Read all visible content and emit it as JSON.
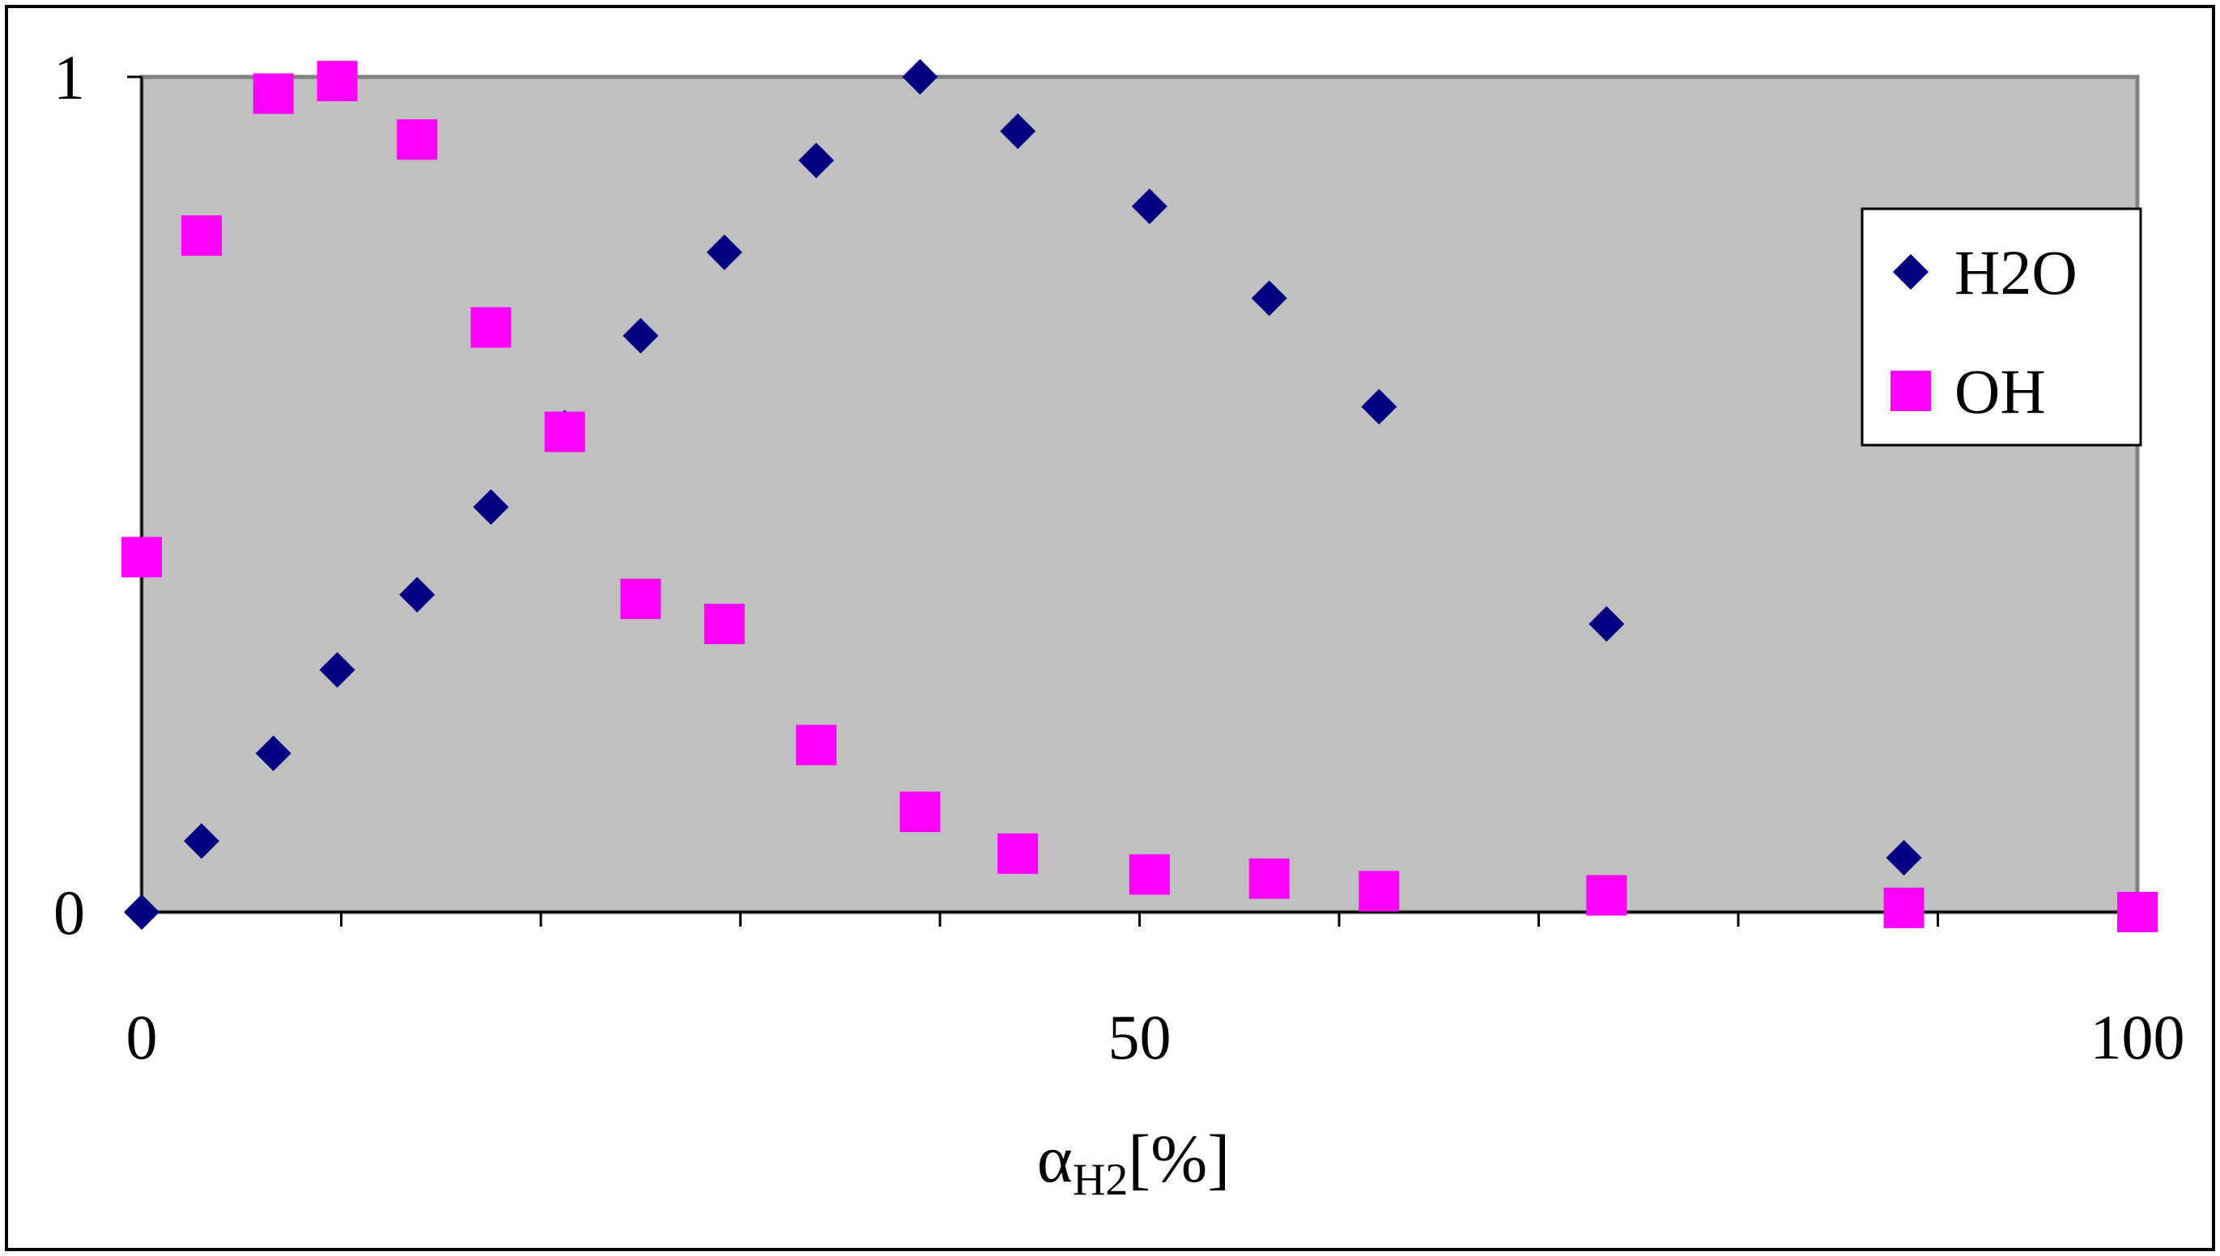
{
  "chart_data": {
    "type": "scatter",
    "xlabel_main": "α",
    "xlabel_sub": "H2",
    "xlabel_unit": "[%]",
    "xlim": [
      0,
      100
    ],
    "ylim": [
      0,
      1
    ],
    "x_ticks": [
      0,
      50,
      100
    ],
    "x_tick_labels": [
      "0",
      "50",
      "100"
    ],
    "y_ticks": [
      0,
      1
    ],
    "y_tick_labels": [
      "0",
      "1"
    ],
    "grid": false,
    "legend_position": "right",
    "plot_background": "#c0c0c0",
    "series": [
      {
        "name": "H2O",
        "marker": "diamond",
        "color": "#000080",
        "points": [
          [
            0,
            0
          ],
          [
            3,
            0.085
          ],
          [
            6.6,
            0.19
          ],
          [
            9.8,
            0.29
          ],
          [
            13.8,
            0.38
          ],
          [
            17.5,
            0.485
          ],
          [
            21.2,
            0.58
          ],
          [
            25,
            0.69
          ],
          [
            29.2,
            0.79
          ],
          [
            33.8,
            0.9
          ],
          [
            39,
            1.0
          ],
          [
            43.9,
            0.935
          ],
          [
            50.5,
            0.845
          ],
          [
            56.5,
            0.735
          ],
          [
            62,
            0.605
          ],
          [
            73.4,
            0.345
          ],
          [
            88.3,
            0.065
          ]
        ]
      },
      {
        "name": "OH",
        "marker": "square",
        "color": "#ff00ff",
        "points": [
          [
            0,
            0.425
          ],
          [
            3,
            0.81
          ],
          [
            6.6,
            0.98
          ],
          [
            9.8,
            0.995
          ],
          [
            13.8,
            0.925
          ],
          [
            17.5,
            0.7
          ],
          [
            21.2,
            0.575
          ],
          [
            25,
            0.375
          ],
          [
            29.2,
            0.345
          ],
          [
            33.8,
            0.2
          ],
          [
            39,
            0.12
          ],
          [
            43.9,
            0.07
          ],
          [
            50.5,
            0.045
          ],
          [
            56.5,
            0.04
          ],
          [
            62,
            0.025
          ],
          [
            73.4,
            0.02
          ],
          [
            88.3,
            0.005
          ],
          [
            100,
            0
          ]
        ]
      }
    ]
  }
}
